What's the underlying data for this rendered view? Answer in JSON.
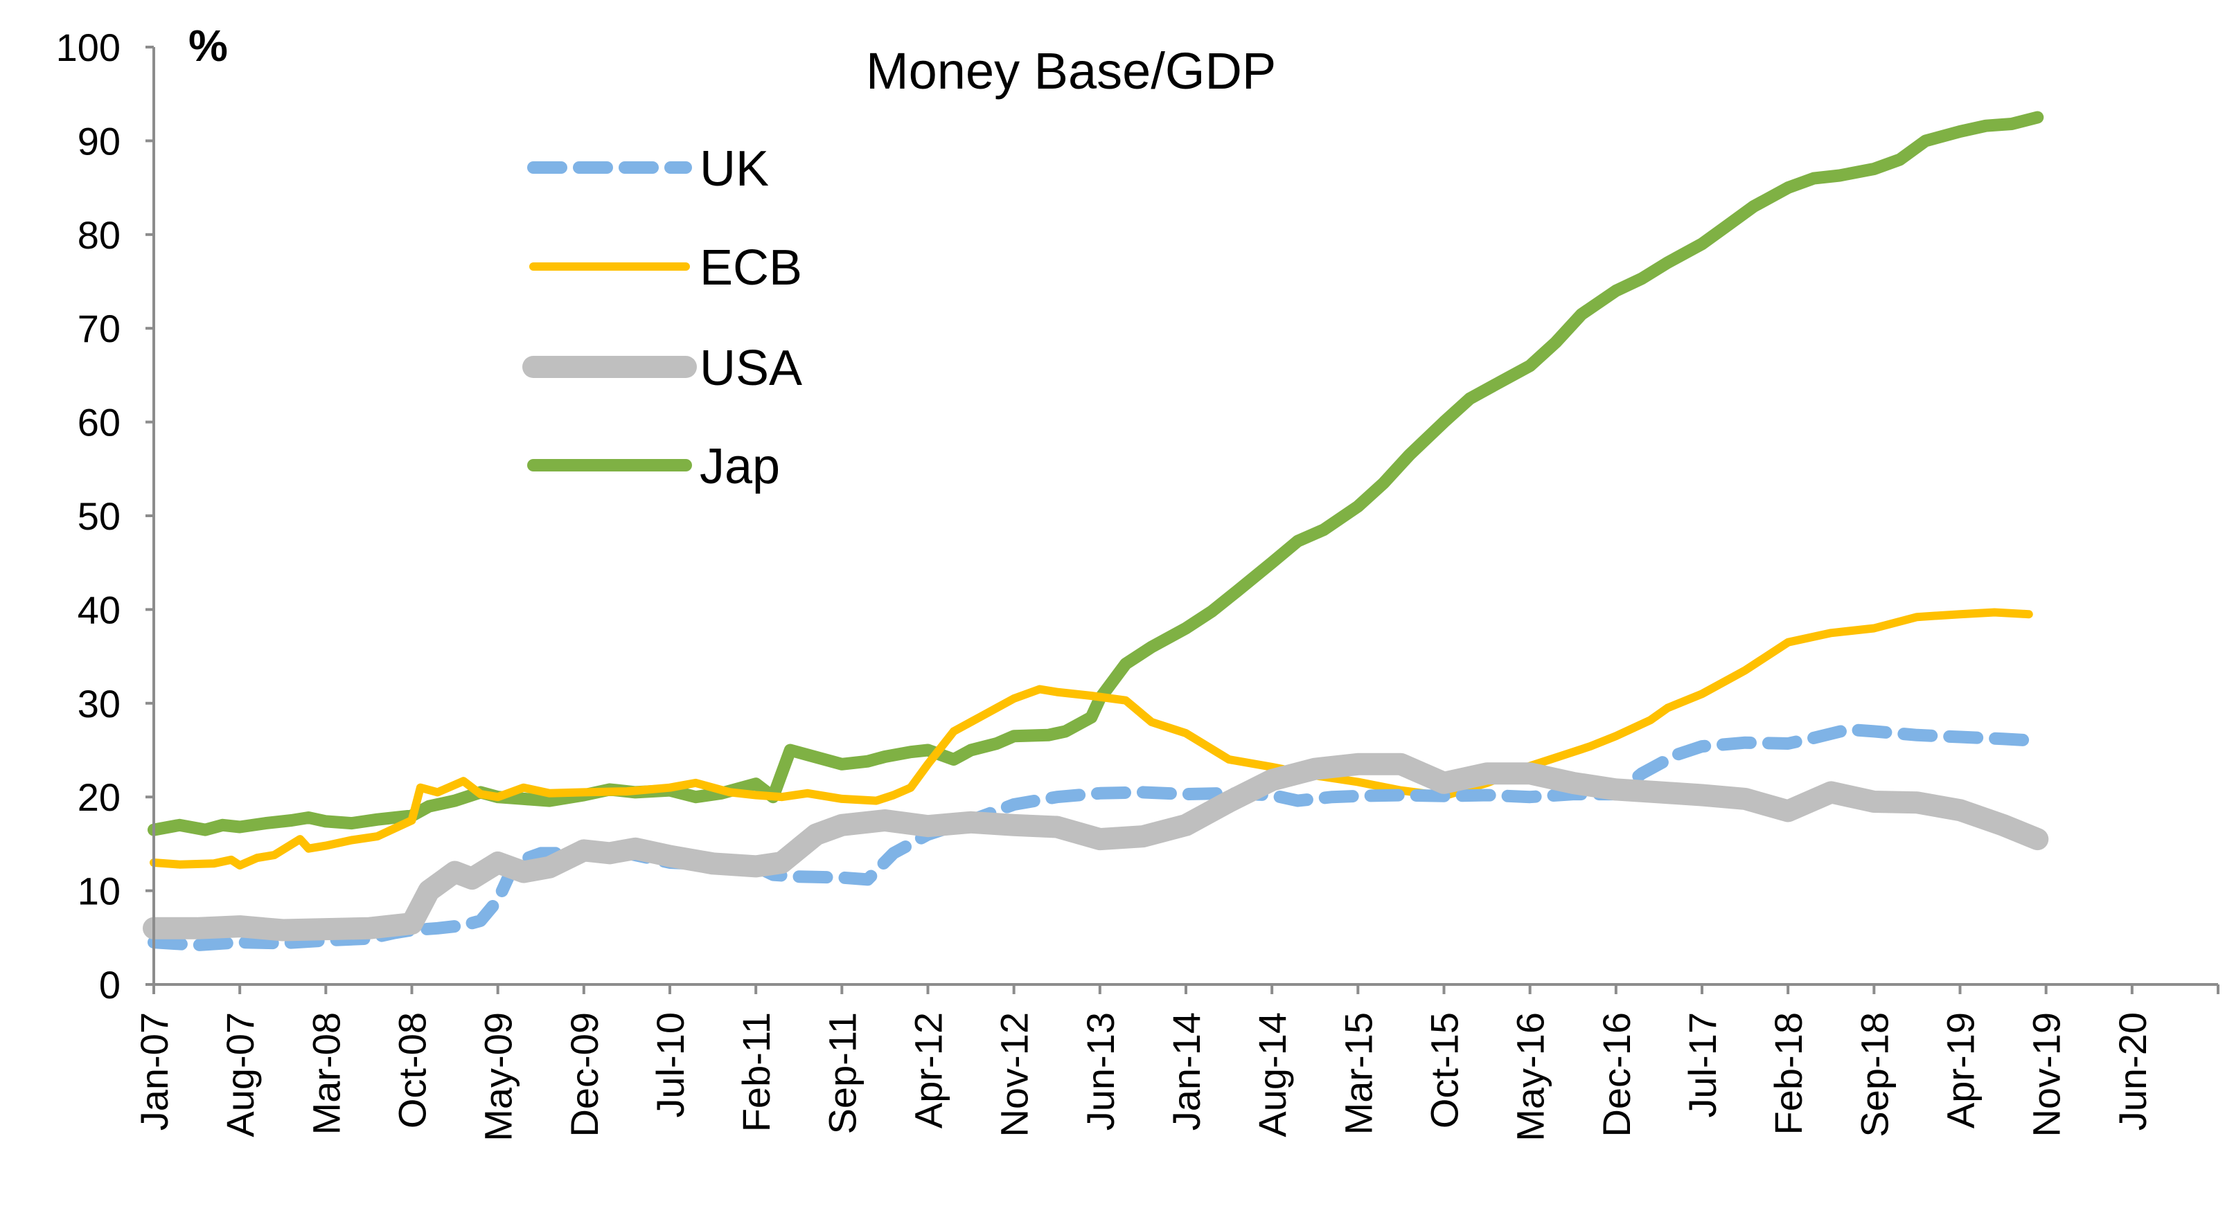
{
  "chart_data": {
    "type": "line",
    "title": "Money Base/GDP",
    "ylabel": "%",
    "xlabel": "",
    "ylim": [
      0,
      100
    ],
    "yticks": [
      0,
      10,
      20,
      30,
      40,
      50,
      60,
      70,
      80,
      90,
      100
    ],
    "grid": false,
    "legend_position": "top-left",
    "categories": [
      "Jan-07",
      "Aug-07",
      "Mar-08",
      "Oct-08",
      "May-09",
      "Dec-09",
      "Jul-10",
      "Feb-11",
      "Sep-11",
      "Apr-12",
      "Nov-12",
      "Jun-13",
      "Jan-14",
      "Aug-14",
      "Mar-15",
      "Oct-15",
      "May-16",
      "Dec-16",
      "Jul-17",
      "Feb-18",
      "Sep-18",
      "Apr-19",
      "Nov-19",
      "Jun-20"
    ],
    "series": [
      {
        "name": "UK",
        "color": "#7fb3e6",
        "style": "dashed",
        "x": [
          0,
          0.5,
          1,
          1.5,
          2,
          2.5,
          2.8,
          3,
          3.3,
          3.6,
          3.8,
          4,
          4.2,
          4.5,
          5,
          5.5,
          6,
          6.5,
          7,
          7.2,
          7.5,
          8,
          8.3,
          8.6,
          9,
          9.5,
          10,
          10.5,
          11,
          11.5,
          12,
          12.5,
          13,
          13.3,
          13.7,
          14,
          14.5,
          15,
          15.5,
          16,
          16.5,
          17,
          17.3,
          17.7,
          18,
          18.5,
          19,
          19.3,
          19.7,
          20,
          20.5,
          21,
          21.5,
          21.9
        ],
        "values": [
          4.5,
          4.2,
          4.5,
          4.4,
          4.7,
          4.9,
          5.5,
          5.8,
          6.0,
          6.3,
          6.8,
          9,
          13,
          14,
          14,
          14,
          13,
          12.8,
          12.6,
          11.7,
          11.5,
          11.4,
          11.2,
          14,
          16,
          17.5,
          19.2,
          20,
          20.4,
          20.5,
          20.3,
          20.4,
          20.2,
          19.6,
          20,
          20.1,
          20.2,
          20.1,
          20.2,
          20,
          20.3,
          20.3,
          22.5,
          24.5,
          25.4,
          25.8,
          25.7,
          26.3,
          27.2,
          27,
          26.6,
          26.4,
          26.2,
          26
        ]
      },
      {
        "name": "ECB",
        "color": "#ffc000",
        "style": "solid",
        "x": [
          0,
          0.3,
          0.7,
          0.9,
          1,
          1.2,
          1.4,
          1.7,
          1.8,
          2,
          2.3,
          2.6,
          3,
          3.1,
          3.3,
          3.6,
          3.8,
          4,
          4.3,
          4.6,
          5,
          5.5,
          6,
          6.3,
          6.7,
          7,
          7.3,
          7.6,
          8,
          8.4,
          8.6,
          8.8,
          9,
          9.3,
          9.6,
          10,
          10.3,
          10.5,
          10.9,
          11.3,
          11.6,
          12,
          12.5,
          13,
          13.5,
          14,
          14.5,
          15,
          15.5,
          16,
          16.4,
          16.7,
          17,
          17.4,
          17.6,
          18,
          18.5,
          19,
          19.5,
          20,
          20.5,
          21,
          21.4,
          21.8
        ],
        "values": [
          13,
          12.8,
          12.9,
          13.3,
          12.7,
          13.5,
          13.8,
          15.5,
          14.5,
          14.8,
          15.4,
          15.8,
          17.5,
          21,
          20.5,
          21.7,
          20.3,
          20,
          21,
          20.4,
          20.5,
          20.6,
          21,
          21.5,
          20.5,
          20.2,
          20,
          20.4,
          19.8,
          19.6,
          20.2,
          21,
          23.5,
          27,
          28.5,
          30.5,
          31.5,
          31.2,
          30.8,
          30.3,
          28,
          26.8,
          24,
          23.2,
          22.3,
          21.6,
          20.7,
          20.1,
          21.5,
          23.3,
          24.5,
          25.4,
          26.5,
          28.2,
          29.5,
          31,
          33.5,
          36.5,
          37.5,
          38,
          39.2,
          39.5,
          39.7,
          39.5
        ]
      },
      {
        "name": "USA",
        "color": "#bfbfbf",
        "style": "solid",
        "x": [
          0,
          0.5,
          1,
          1.5,
          2,
          2.5,
          2.8,
          3,
          3.2,
          3.5,
          3.7,
          4,
          4.3,
          4.6,
          5,
          5.3,
          5.6,
          6,
          6.5,
          7,
          7.3,
          7.7,
          8,
          8.5,
          9,
          9.5,
          10,
          10.5,
          11,
          11.5,
          12,
          12.5,
          13,
          13.5,
          14,
          14.5,
          15,
          15.5,
          16,
          16.5,
          17,
          17.5,
          18,
          18.5,
          19,
          19.5,
          20,
          20.5,
          21,
          21.5,
          21.9
        ],
        "values": [
          6,
          6,
          6.2,
          5.8,
          5.9,
          6,
          6.3,
          6.5,
          10,
          12,
          11.3,
          13,
          12,
          12.5,
          14.3,
          14,
          14.5,
          13.7,
          12.9,
          12.6,
          13,
          16,
          17,
          17.5,
          16.9,
          17.3,
          17,
          16.8,
          15.5,
          15.8,
          17,
          19.5,
          21.8,
          23,
          23.5,
          23.5,
          21.5,
          22.5,
          22.5,
          21.5,
          20.8,
          20.5,
          20.2,
          19.8,
          18.5,
          20.5,
          19.5,
          19.4,
          18.6,
          17,
          15.5
        ]
      },
      {
        "name": "Jap",
        "color": "#7fb144",
        "style": "solid",
        "x": [
          0,
          0.3,
          0.6,
          0.8,
          1,
          1.3,
          1.6,
          1.8,
          2,
          2.3,
          2.6,
          3,
          3.2,
          3.5,
          3.8,
          4,
          4.3,
          4.6,
          5,
          5.3,
          5.6,
          6,
          6.3,
          6.6,
          7,
          7.2,
          7.4,
          7.6,
          8,
          8.3,
          8.5,
          8.8,
          9,
          9.3,
          9.5,
          9.8,
          10,
          10.4,
          10.6,
          10.9,
          11,
          11.3,
          11.6,
          12,
          12.3,
          12.6,
          13,
          13.3,
          13.6,
          14,
          14.3,
          14.6,
          15,
          15.3,
          15.6,
          16,
          16.3,
          16.6,
          17,
          17.3,
          17.6,
          18,
          18.3,
          18.6,
          19,
          19.3,
          19.6,
          20,
          20.3,
          20.6,
          21,
          21.3,
          21.6,
          21.9
        ],
        "values": [
          16.5,
          17,
          16.5,
          17,
          16.8,
          17.2,
          17.5,
          17.8,
          17.4,
          17.2,
          17.6,
          18,
          19,
          19.6,
          20.5,
          20,
          19.8,
          19.6,
          20.2,
          20.8,
          20.5,
          20.7,
          20,
          20.4,
          21.4,
          20,
          25,
          24.5,
          23.5,
          23.8,
          24.3,
          24.8,
          25,
          24,
          25,
          25.7,
          26.5,
          26.6,
          27,
          28.5,
          30.5,
          34.2,
          36,
          38,
          39.8,
          42,
          45,
          47.3,
          48.5,
          51,
          53.5,
          56.5,
          60,
          62.5,
          64,
          66,
          68.5,
          71.5,
          74,
          75.3,
          77,
          79,
          81,
          83,
          85,
          86,
          86.3,
          87,
          88,
          90,
          91,
          91.6,
          91.8,
          92.5
        ]
      }
    ]
  }
}
